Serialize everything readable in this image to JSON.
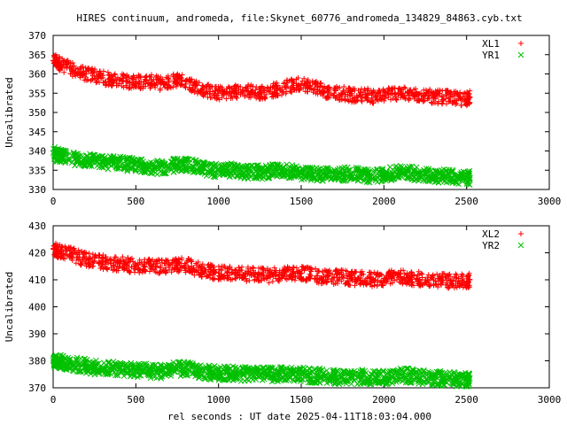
{
  "title": "HIRES continuum, andromeda, file:Skynet_60776_andromeda_134829_84863.cyb.txt",
  "xlabel": "rel seconds : UT date 2025-04-11T18:03:04.000",
  "colors": {
    "red": "#ff0000",
    "green": "#00c000",
    "axis": "#000000"
  },
  "chart_data": [
    {
      "type": "scatter",
      "ylabel": "Uncalibrated",
      "xlim": [
        0,
        3000
      ],
      "ylim": [
        330,
        370
      ],
      "xticks": [
        0,
        500,
        1000,
        1500,
        2000,
        2500,
        3000
      ],
      "yticks": [
        330,
        335,
        340,
        345,
        350,
        355,
        360,
        365,
        370
      ],
      "legend_position": "top-right",
      "grid": false,
      "series": [
        {
          "name": "XL1",
          "marker": "plus",
          "color": "#ff0000",
          "x": [
            0,
            25,
            50,
            100,
            150,
            200,
            250,
            300,
            350,
            400,
            450,
            500,
            550,
            600,
            650,
            700,
            750,
            800,
            850,
            900,
            950,
            1000,
            1050,
            1100,
            1150,
            1200,
            1250,
            1300,
            1350,
            1400,
            1450,
            1500,
            1550,
            1600,
            1650,
            1700,
            1750,
            1800,
            1850,
            1900,
            1950,
            2000,
            2050,
            2100,
            2150,
            2200,
            2250,
            2300,
            2350,
            2400,
            2450,
            2500,
            2520
          ],
          "y": [
            363.5,
            363.0,
            362.5,
            361.5,
            360.5,
            360.0,
            359.5,
            359.0,
            358.5,
            358.5,
            358.0,
            358.0,
            358.0,
            358.0,
            357.5,
            358.0,
            358.5,
            358.0,
            357.0,
            356.0,
            355.5,
            355.0,
            355.0,
            355.5,
            355.5,
            355.5,
            355.0,
            355.5,
            356.0,
            356.5,
            357.0,
            357.5,
            357.0,
            356.5,
            355.5,
            355.0,
            355.0,
            354.5,
            354.5,
            354.5,
            354.0,
            354.5,
            355.0,
            355.0,
            354.5,
            354.5,
            354.5,
            354.0,
            354.0,
            354.0,
            353.5,
            353.5,
            354.0
          ]
        },
        {
          "name": "YR1",
          "marker": "cross",
          "color": "#00c000",
          "x": [
            0,
            25,
            50,
            100,
            150,
            200,
            250,
            300,
            350,
            400,
            450,
            500,
            550,
            600,
            650,
            700,
            750,
            800,
            850,
            900,
            950,
            1000,
            1050,
            1100,
            1150,
            1200,
            1250,
            1300,
            1350,
            1400,
            1450,
            1500,
            1550,
            1600,
            1650,
            1700,
            1750,
            1800,
            1850,
            1900,
            1950,
            2000,
            2050,
            2100,
            2150,
            2200,
            2250,
            2300,
            2350,
            2400,
            2450,
            2500,
            2520
          ],
          "y": [
            339.5,
            339.0,
            338.5,
            338.0,
            338.0,
            337.5,
            337.5,
            337.0,
            337.0,
            337.0,
            336.5,
            336.5,
            336.0,
            336.0,
            335.5,
            336.0,
            336.5,
            336.5,
            336.0,
            335.5,
            335.0,
            335.0,
            335.0,
            335.0,
            334.5,
            334.5,
            334.5,
            334.5,
            335.0,
            335.0,
            334.5,
            334.0,
            334.0,
            334.0,
            334.0,
            334.0,
            334.0,
            334.0,
            334.0,
            333.5,
            333.5,
            334.0,
            334.0,
            334.5,
            334.5,
            334.0,
            334.0,
            333.5,
            333.5,
            333.5,
            333.0,
            333.0,
            333.0
          ]
        }
      ]
    },
    {
      "type": "scatter",
      "ylabel": "Uncalibrated",
      "xlabel": "rel seconds : UT date 2025-04-11T18:03:04.000",
      "xlim": [
        0,
        3000
      ],
      "ylim": [
        370,
        430
      ],
      "xticks": [
        0,
        500,
        1000,
        1500,
        2000,
        2500,
        3000
      ],
      "yticks": [
        370,
        380,
        390,
        400,
        410,
        420,
        430
      ],
      "legend_position": "top-right",
      "grid": false,
      "series": [
        {
          "name": "XL2",
          "marker": "plus",
          "color": "#ff0000",
          "x": [
            0,
            25,
            50,
            100,
            150,
            200,
            250,
            300,
            350,
            400,
            450,
            500,
            550,
            600,
            650,
            700,
            750,
            800,
            850,
            900,
            950,
            1000,
            1050,
            1100,
            1150,
            1200,
            1250,
            1300,
            1350,
            1400,
            1450,
            1500,
            1550,
            1600,
            1650,
            1700,
            1750,
            1800,
            1850,
            1900,
            1950,
            2000,
            2050,
            2100,
            2150,
            2200,
            2250,
            2300,
            2350,
            2400,
            2450,
            2500,
            2520
          ],
          "y": [
            421.5,
            421.0,
            420.5,
            419.5,
            418.5,
            417.5,
            417.0,
            416.5,
            416.0,
            416.0,
            415.5,
            415.0,
            415.0,
            415.0,
            415.0,
            415.0,
            415.5,
            415.5,
            414.5,
            413.5,
            413.0,
            412.5,
            412.5,
            412.5,
            412.0,
            412.0,
            412.0,
            411.5,
            412.0,
            412.0,
            412.5,
            412.5,
            412.0,
            411.5,
            411.0,
            411.0,
            411.0,
            410.5,
            410.5,
            410.5,
            410.0,
            410.5,
            411.0,
            411.0,
            410.5,
            410.5,
            410.0,
            410.0,
            410.0,
            409.5,
            409.5,
            409.5,
            410.0
          ]
        },
        {
          "name": "YR2",
          "marker": "cross",
          "color": "#00c000",
          "x": [
            0,
            25,
            50,
            100,
            150,
            200,
            250,
            300,
            350,
            400,
            450,
            500,
            550,
            600,
            650,
            700,
            750,
            800,
            850,
            900,
            950,
            1000,
            1050,
            1100,
            1150,
            1200,
            1250,
            1300,
            1350,
            1400,
            1450,
            1500,
            1550,
            1600,
            1650,
            1700,
            1750,
            1800,
            1850,
            1900,
            1950,
            2000,
            2050,
            2100,
            2150,
            2200,
            2250,
            2300,
            2350,
            2400,
            2450,
            2500,
            2520
          ],
          "y": [
            380.0,
            380.0,
            379.5,
            379.0,
            378.5,
            378.0,
            377.5,
            377.5,
            377.0,
            377.0,
            377.0,
            376.5,
            376.5,
            376.0,
            376.0,
            376.5,
            377.0,
            377.0,
            376.5,
            376.0,
            375.5,
            375.5,
            375.5,
            375.5,
            375.0,
            375.0,
            375.0,
            375.0,
            375.0,
            375.0,
            375.0,
            375.0,
            374.5,
            374.5,
            374.5,
            374.0,
            374.0,
            374.0,
            374.0,
            374.0,
            373.5,
            374.0,
            374.0,
            374.5,
            374.5,
            374.0,
            374.0,
            373.5,
            373.5,
            373.5,
            373.0,
            373.0,
            373.5
          ]
        }
      ]
    }
  ]
}
